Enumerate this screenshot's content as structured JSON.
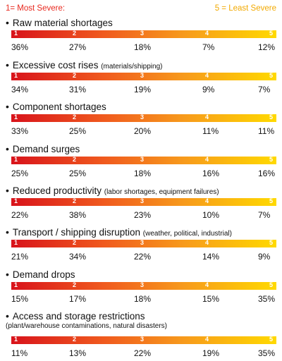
{
  "legend": {
    "most_severe": "1= Most Severe:",
    "least_severe": "5 = Least Severe"
  },
  "colors": {
    "most_severe": "#e8281e",
    "least_severe": "#f2a900",
    "bar_start": "#d8131b",
    "bar_end": "#ffd900"
  },
  "scale_labels": [
    "1",
    "2",
    "3",
    "4",
    "5"
  ],
  "chart_data": {
    "type": "table",
    "categories": [
      "1",
      "2",
      "3",
      "4",
      "5"
    ],
    "rows": [
      {
        "label": "Raw material shortages",
        "note": "",
        "note2": "",
        "values": [
          "36%",
          "27%",
          "18%",
          "7%",
          "12%"
        ]
      },
      {
        "label": "Excessive cost rises",
        "note": "(materials/shipping)",
        "note2": "",
        "values": [
          "34%",
          "31%",
          "19%",
          "9%",
          "7%"
        ]
      },
      {
        "label": "Component shortages",
        "note": "",
        "note2": "",
        "values": [
          "33%",
          "25%",
          "20%",
          "11%",
          "11%"
        ]
      },
      {
        "label": "Demand surges",
        "note": "",
        "note2": "",
        "values": [
          "25%",
          "25%",
          "18%",
          "16%",
          "16%"
        ]
      },
      {
        "label": "Reduced productivity",
        "note": "(labor shortages, equipment failures)",
        "note2": "",
        "values": [
          "22%",
          "38%",
          "23%",
          "10%",
          "7%"
        ]
      },
      {
        "label": "Transport / shipping disruption",
        "note": "(weather, political, industrial)",
        "note2": "",
        "values": [
          "21%",
          "34%",
          "22%",
          "14%",
          "9%"
        ]
      },
      {
        "label": "Demand drops",
        "note": "",
        "note2": "",
        "values": [
          "15%",
          "17%",
          "18%",
          "15%",
          "35%"
        ]
      },
      {
        "label": "Access and storage restrictions",
        "note": "",
        "note2": "(plant/warehouse contaminations, natural disasters)",
        "values": [
          "11%",
          "13%",
          "22%",
          "19%",
          "35%"
        ]
      }
    ]
  }
}
